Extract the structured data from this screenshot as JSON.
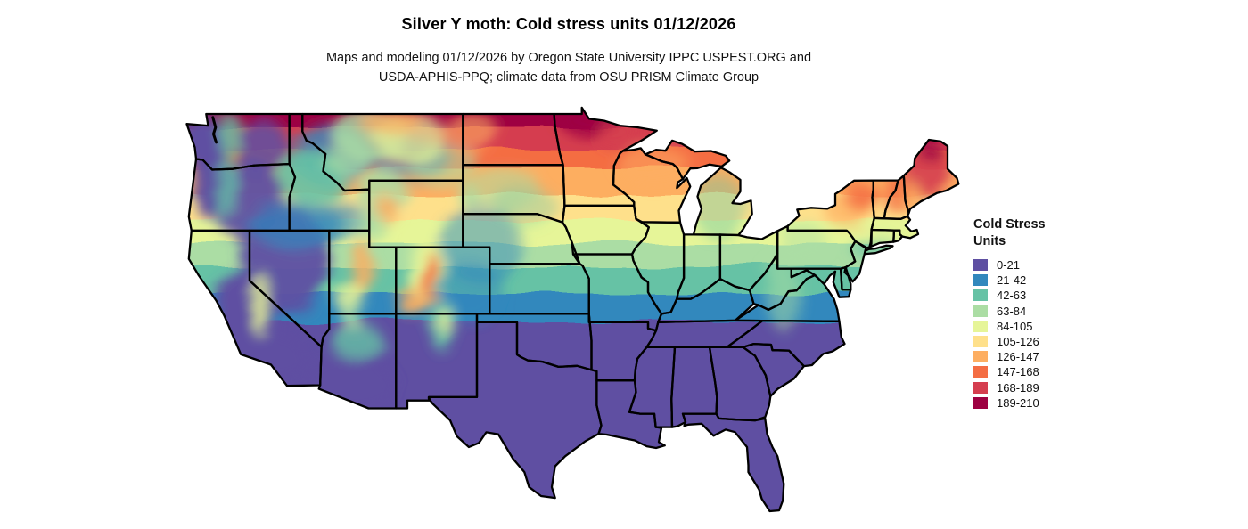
{
  "header": {
    "title": "Silver Y moth: Cold stress units 01/12/2026",
    "subtitle_line1": "Maps and modeling 01/12/2026 by Oregon State University IPPC USPEST.ORG and",
    "subtitle_line2": "USDA-APHIS-PPQ; climate data from OSU PRISM Climate Group"
  },
  "legend": {
    "title_line1": "Cold Stress",
    "title_line2": "Units",
    "bins": [
      {
        "label": "0-21",
        "color": "#5e4fa2"
      },
      {
        "label": "21-42",
        "color": "#3288bd"
      },
      {
        "label": "42-63",
        "color": "#66c2a5"
      },
      {
        "label": "63-84",
        "color": "#abdda4"
      },
      {
        "label": "84-105",
        "color": "#e6f598"
      },
      {
        "label": "105-126",
        "color": "#fee08b"
      },
      {
        "label": "126-147",
        "color": "#fdae61"
      },
      {
        "label": "147-168",
        "color": "#f46d43"
      },
      {
        "label": "168-189",
        "color": "#d53e4f"
      },
      {
        "label": "189-210",
        "color": "#9e0142"
      }
    ]
  },
  "chart_data": {
    "type": "heatmap",
    "subtype": "classified raster choropleth map",
    "region": "Contiguous United States with state boundaries",
    "variable": "Cold Stress Units",
    "date": "01/12/2026",
    "title": "Silver Y moth: Cold stress units 01/12/2026",
    "legend_title": "Cold Stress Units",
    "legend_position": "right",
    "border_color": "#000000",
    "background_color": "#ffffff",
    "bins": [
      {
        "range": "0-21",
        "min": 0,
        "max": 21,
        "color": "#5e4fa2"
      },
      {
        "range": "21-42",
        "min": 21,
        "max": 42,
        "color": "#3288bd"
      },
      {
        "range": "42-63",
        "min": 42,
        "max": 63,
        "color": "#66c2a5"
      },
      {
        "range": "63-84",
        "min": 63,
        "max": 84,
        "color": "#abdda4"
      },
      {
        "range": "84-105",
        "min": 84,
        "max": 105,
        "color": "#e6f598"
      },
      {
        "range": "105-126",
        "min": 105,
        "max": 126,
        "color": "#fee08b"
      },
      {
        "range": "126-147",
        "min": 126,
        "max": 147,
        "color": "#fdae61"
      },
      {
        "range": "147-168",
        "min": 147,
        "max": 168,
        "color": "#f46d43"
      },
      {
        "range": "168-189",
        "min": 168,
        "max": 189,
        "color": "#d53e4f"
      },
      {
        "range": "189-210",
        "min": 189,
        "max": 210,
        "color": "#9e0142"
      }
    ],
    "spatial_pattern": [
      {
        "area": "Texas, Oklahoma south, Gulf Coast states, Southeast (GA, FL, SC, AL, MS, LA, AR, TN), southern California, Central Valley, southern Arizona/New Mexico, Great Basin lowlands, western WA/OR lowlands",
        "bin": "0-21"
      },
      {
        "area": "Kansas, Missouri, southern Illinois/Indiana/Ohio valley, Virginia, Columbia Basin, northern Nevada, high plains of eastern Colorado and Nebraska panhandle, western Montana valleys",
        "bin": "21-42"
      },
      {
        "area": "Central Nebraska, Iowa south, Ohio, Pennsylvania, Michigan lower peninsula, Idaho mountains, Appalachians",
        "bin": "42-63"
      },
      {
        "area": "Northern Iowa, South Dakota center, southern Wisconsin, northern Michigan LP, upstate New York center, Rockies mid-elevations, Black Hills",
        "bin": "63-84"
      },
      {
        "area": "Central South Dakota/Minnesota, central Montana, Colorado Rockies flanks, Sierra Nevada",
        "bin": "84-105"
      },
      {
        "area": "Southern North Dakota, central Minnesota, northern Wisconsin, Michigan UP, SW Maine, Wasatch range",
        "bin": "105-126"
      },
      {
        "area": "North Dakota, NW Minnesota, Wisconsin north, upstate New York, Adirondacks fringe, Wind River range",
        "bin": "126-147"
      },
      {
        "area": "Northern North Dakota, Adirondacks, NH/VT mountains, central Maine, central Colorado Rockies crest",
        "bin": "147-168"
      },
      {
        "area": "Far northern Minnesota fringe and north-central Maine",
        "bin": "168-189"
      },
      {
        "area": "Extreme northern Minnesota (international border)",
        "bin": "189-210"
      }
    ]
  }
}
